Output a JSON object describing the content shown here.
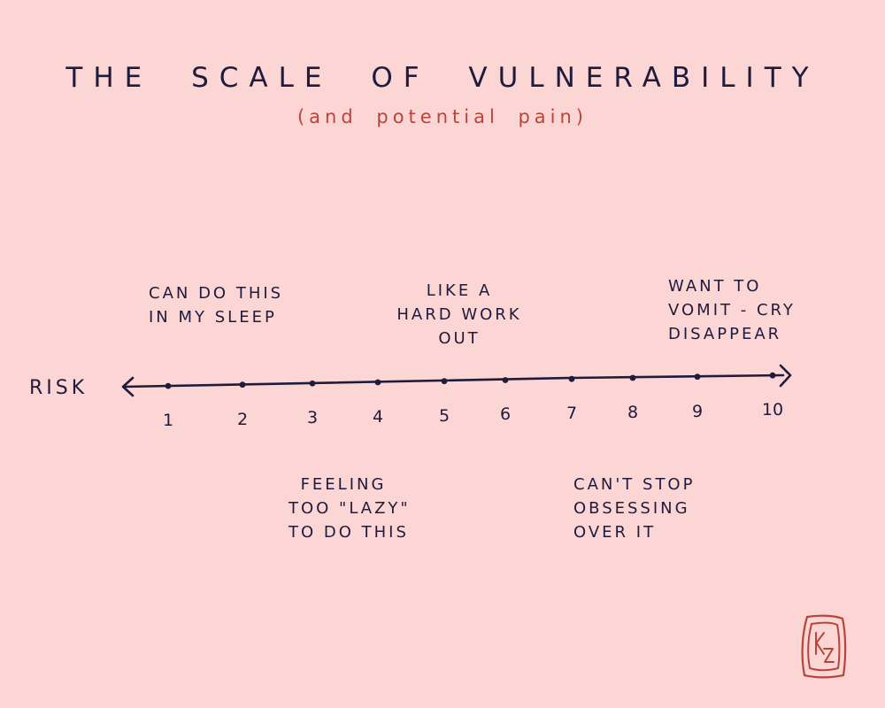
{
  "title": "THE SCALE OF VULNERABILITY",
  "subtitle": "(and potential pain)",
  "axis": {
    "label": "RISK",
    "min": 1,
    "max": 10,
    "ticks": [
      "1",
      "2",
      "3",
      "4",
      "5",
      "6",
      "7",
      "8",
      "9",
      "10"
    ]
  },
  "annotations": [
    {
      "at": 1,
      "position": "above",
      "lines": [
        "CAN DO THIS",
        "IN MY SLEEP"
      ]
    },
    {
      "at": 5,
      "position": "above",
      "lines": [
        "LIKE A",
        "HARD WORK",
        "OUT"
      ]
    },
    {
      "at": 9,
      "position": "above",
      "lines": [
        "WANT TO",
        "VOMIT - CRY",
        "DISAPPEAR"
      ]
    },
    {
      "at": 3,
      "position": "below",
      "lines": [
        "FEELING",
        "TOO \"LAZY\"",
        "TO DO THIS"
      ]
    },
    {
      "at": 7,
      "position": "below",
      "lines": [
        "CAN'T STOP",
        "OBSESSING",
        "OVER IT"
      ]
    }
  ],
  "signature": "KZ",
  "colors": {
    "background": "#fbd6d4",
    "ink": "#1f1b3d",
    "accent": "#b8453a"
  }
}
